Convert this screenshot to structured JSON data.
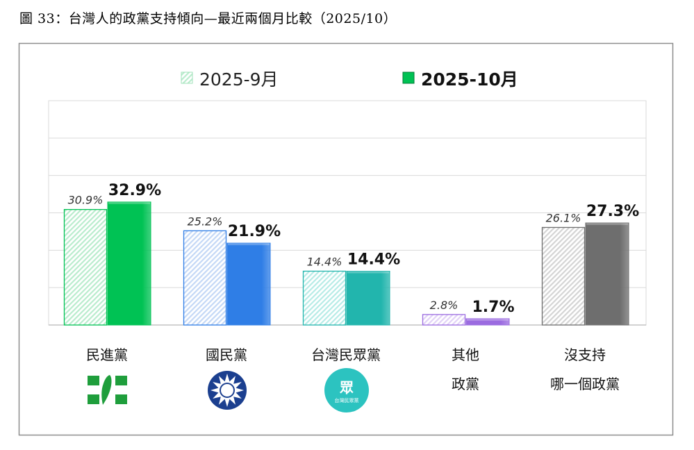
{
  "title": "圖 33：台灣人的政黨支持傾向—最近兩個月比較（2025/10）",
  "chart_data": {
    "type": "bar",
    "title": "",
    "xlabel": "",
    "ylabel": "",
    "ylim": [
      0,
      60
    ],
    "grid": true,
    "gridlines_at": [
      10,
      20,
      30,
      40,
      50,
      60
    ],
    "legend_position": "top",
    "categories": [
      [
        "民進黨"
      ],
      [
        "國民黨"
      ],
      [
        "台灣民眾黨"
      ],
      [
        "其他",
        "政黨"
      ],
      [
        "沒支持",
        "哪一個政黨"
      ]
    ],
    "category_logos": [
      "dpp-logo",
      "kmt-logo",
      "tpp-logo",
      null,
      null
    ],
    "series": [
      {
        "name": "2025-9月",
        "values": [
          30.9,
          25.2,
          14.4,
          2.8,
          26.1
        ],
        "labels": [
          "30.9%",
          "25.2%",
          "14.4%",
          "2.8%",
          "26.1%"
        ],
        "style": "hatched"
      },
      {
        "name": "2025-10月",
        "values": [
          32.9,
          21.9,
          14.4,
          1.7,
          27.3
        ],
        "labels": [
          "32.9%",
          "21.9%",
          "14.4%",
          "1.7%",
          "27.3%"
        ],
        "style": "solid"
      }
    ],
    "category_colors": [
      "#00c254",
      "#2f7ee6",
      "#22b5ad",
      "#9b6be0",
      "#6e6e6e"
    ],
    "category_light_colors": [
      "#b9eccd",
      "#c4d8f6",
      "#b6ebe6",
      "#e1d1f7",
      "#d4d4d4"
    ]
  }
}
